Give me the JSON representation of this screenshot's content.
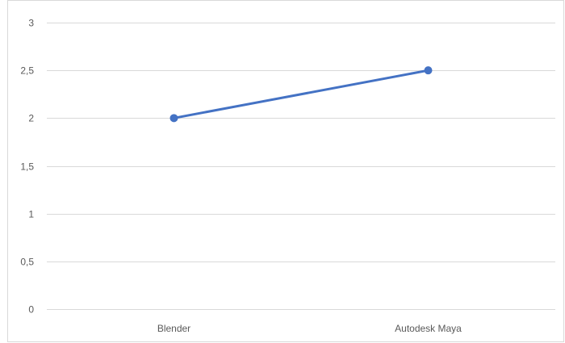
{
  "chart_data": {
    "type": "line",
    "categories": [
      "Blender",
      "Autodesk Maya"
    ],
    "y_tick_labels": [
      "0",
      "0,5",
      "1",
      "1,5",
      "2",
      "2,5",
      "3"
    ],
    "ylim": [
      0,
      3
    ],
    "grid": true,
    "legend": "none",
    "series": [
      {
        "values": [
          2,
          2.5
        ],
        "color": "#4472c4"
      }
    ]
  }
}
